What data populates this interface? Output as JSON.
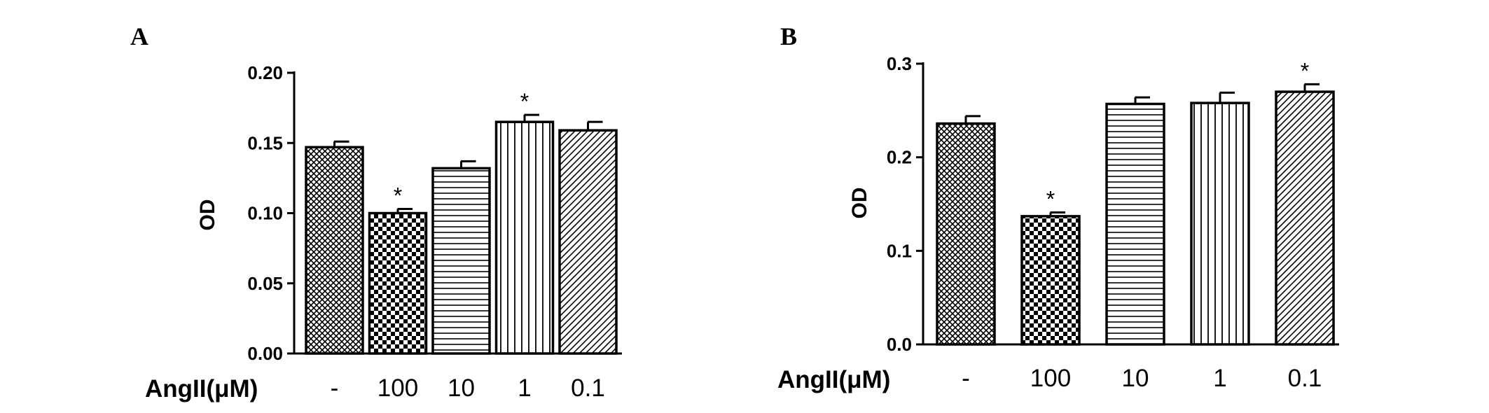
{
  "chart_data": [
    {
      "panel": "A",
      "type": "bar",
      "categories": [
        "-",
        "100",
        "10",
        "1",
        "0.1"
      ],
      "values": [
        0.147,
        0.1,
        0.132,
        0.165,
        0.159
      ],
      "errors": [
        0.004,
        0.003,
        0.005,
        0.005,
        0.006
      ],
      "significant": [
        false,
        true,
        false,
        true,
        false
      ],
      "significance_marker": "*",
      "patterns": [
        "crosshatch",
        "checker",
        "horizontal",
        "vertical",
        "diagonal"
      ],
      "xlabel": "AngII(μM)",
      "ylabel": "OD",
      "ylim": [
        0,
        0.2
      ],
      "yticks": [
        "0.00",
        "0.05",
        "0.10",
        "0.15",
        "0.20"
      ],
      "grid": false,
      "legend": "none"
    },
    {
      "panel": "B",
      "type": "bar",
      "categories": [
        "-",
        "100",
        "10",
        "1",
        "0.1"
      ],
      "values": [
        0.236,
        0.137,
        0.257,
        0.258,
        0.27
      ],
      "errors": [
        0.008,
        0.004,
        0.007,
        0.011,
        0.008
      ],
      "significant": [
        false,
        true,
        false,
        false,
        true
      ],
      "significance_marker": "*",
      "patterns": [
        "crosshatch",
        "checker",
        "horizontal",
        "vertical",
        "diagonal"
      ],
      "xlabel": "AngII(μM)",
      "ylabel": "OD",
      "ylim": [
        0,
        0.3
      ],
      "yticks": [
        "0.0",
        "0.1",
        "0.2",
        "0.3"
      ],
      "grid": false,
      "legend": "none"
    }
  ]
}
